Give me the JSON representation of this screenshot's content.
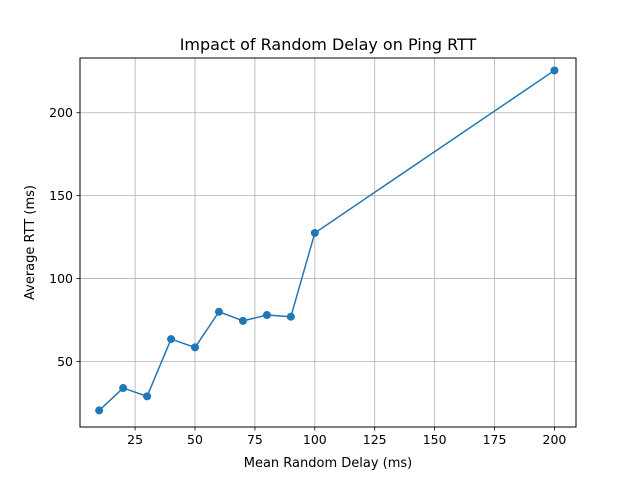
{
  "chart_data": {
    "type": "line",
    "title": "Impact of Random Delay on Ping RTT",
    "xlabel": "Mean Random Delay (ms)",
    "ylabel": "Average RTT (ms)",
    "xlim": [
      2,
      209
    ],
    "ylim": [
      10.5,
      233
    ],
    "xticks": [
      25,
      50,
      75,
      100,
      125,
      150,
      175,
      200
    ],
    "yticks": [
      50,
      100,
      150,
      200
    ],
    "grid": true,
    "series": [
      {
        "color": "#1f77b4",
        "marker": "circle",
        "x": [
          10,
          20,
          30,
          40,
          50,
          60,
          70,
          80,
          90,
          100,
          200
        ],
        "y": [
          20.5,
          34,
          29,
          63.5,
          58.5,
          80,
          74.5,
          78,
          77,
          127.5,
          225.5
        ]
      }
    ]
  }
}
